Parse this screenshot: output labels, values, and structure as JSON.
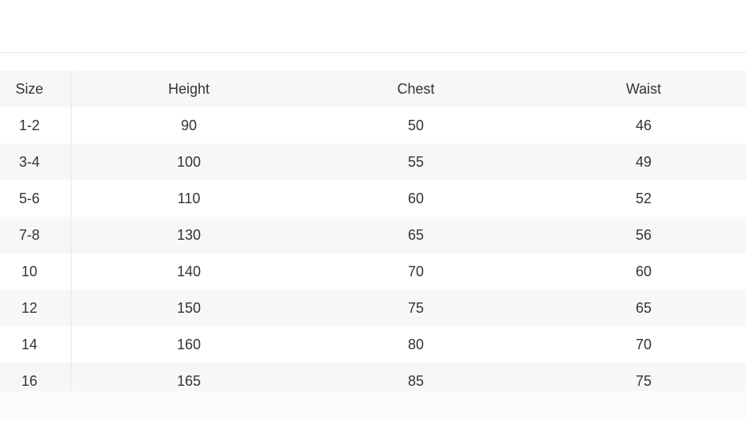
{
  "table": {
    "headers": [
      "Size",
      "Height",
      "Chest",
      "Waist"
    ],
    "rows": [
      [
        "1-2",
        "90",
        "50",
        "46"
      ],
      [
        "3-4",
        "100",
        "55",
        "49"
      ],
      [
        "5-6",
        "110",
        "60",
        "52"
      ],
      [
        "7-8",
        "130",
        "65",
        "56"
      ],
      [
        "10",
        "140",
        "70",
        "60"
      ],
      [
        "12",
        "150",
        "75",
        "65"
      ],
      [
        "14",
        "160",
        "80",
        "70"
      ],
      [
        "16",
        "165",
        "85",
        "75"
      ]
    ]
  }
}
